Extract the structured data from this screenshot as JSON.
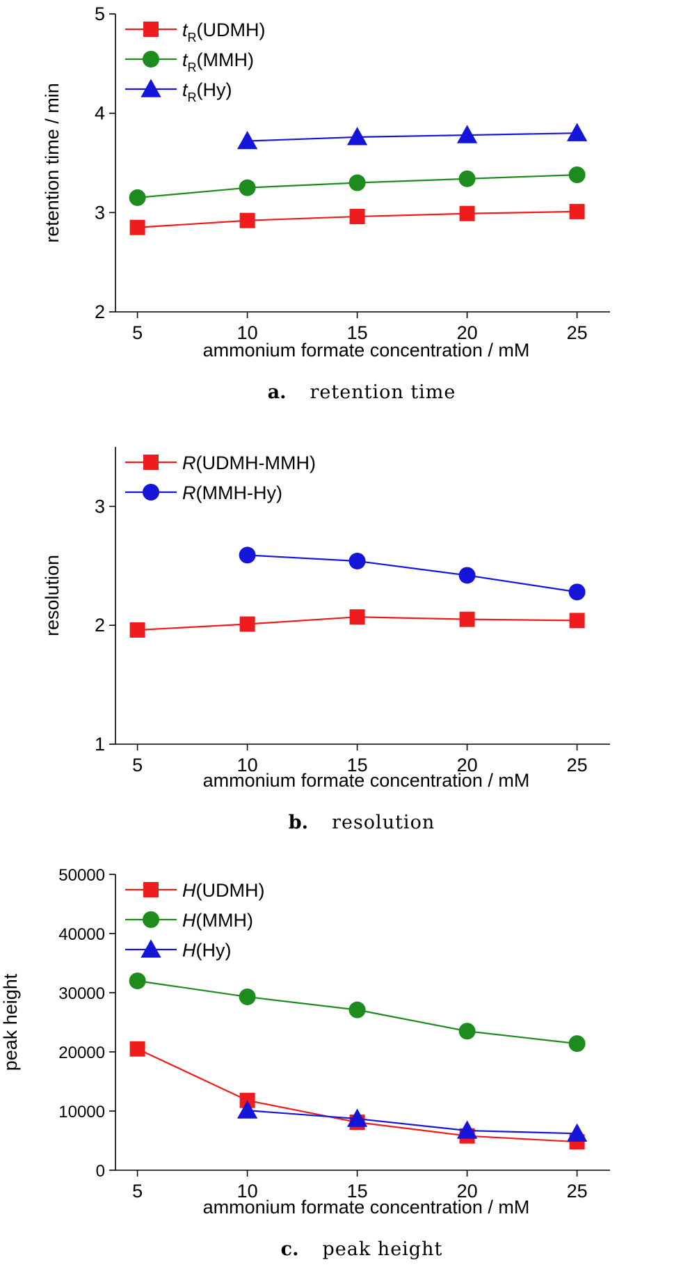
{
  "chart_data": [
    {
      "type": "line",
      "caption_letter": "a.",
      "caption_text": "retention time",
      "xlabel": "ammonium formate concentration / mM",
      "ylabel": "retention time / min",
      "xlim": [
        4,
        26.5
      ],
      "ylim": [
        2,
        5
      ],
      "xticks": [
        5,
        10,
        15,
        20,
        25
      ],
      "yticks": [
        2,
        3,
        4,
        5
      ],
      "legend_position": "top-left",
      "grid": false,
      "series": [
        {
          "name_main": "t",
          "name_sub": "R",
          "name_rest": "(UDMH)",
          "color": "#ee1c1c",
          "marker": "square",
          "x": [
            5,
            10,
            15,
            20,
            25
          ],
          "y": [
            2.85,
            2.92,
            2.96,
            2.99,
            3.01
          ]
        },
        {
          "name_main": "t",
          "name_sub": "R",
          "name_rest": "(MMH)",
          "color": "#1e8b1e",
          "marker": "circle",
          "x": [
            5,
            10,
            15,
            20,
            25
          ],
          "y": [
            3.15,
            3.25,
            3.3,
            3.34,
            3.38
          ]
        },
        {
          "name_main": "t",
          "name_sub": "R",
          "name_rest": "(Hy)",
          "color": "#1515d9",
          "marker": "triangle",
          "x": [
            10,
            15,
            20,
            25
          ],
          "y": [
            3.72,
            3.76,
            3.78,
            3.8
          ]
        }
      ]
    },
    {
      "type": "line",
      "caption_letter": "b.",
      "caption_text": "resolution",
      "xlabel": "ammonium formate concentration / mM",
      "ylabel": "resolution",
      "xlim": [
        4,
        26.5
      ],
      "ylim": [
        1,
        3.5
      ],
      "xticks": [
        5,
        10,
        15,
        20,
        25
      ],
      "yticks": [
        1,
        2,
        3
      ],
      "legend_position": "top-left",
      "grid": false,
      "series": [
        {
          "name_main": "R",
          "name_sub": "",
          "name_rest": "(UDMH-MMH)",
          "color": "#ee1c1c",
          "marker": "square",
          "x": [
            5,
            10,
            15,
            20,
            25
          ],
          "y": [
            1.96,
            2.01,
            2.07,
            2.05,
            2.04
          ]
        },
        {
          "name_main": "R",
          "name_sub": "",
          "name_rest": "(MMH-Hy)",
          "color": "#1515d9",
          "marker": "circle",
          "x": [
            10,
            15,
            20,
            25
          ],
          "y": [
            2.59,
            2.54,
            2.42,
            2.28
          ]
        }
      ]
    },
    {
      "type": "line",
      "caption_letter": "c.",
      "caption_text": "peak height",
      "xlabel": "ammonium formate concentration / mM",
      "ylabel": "peak height",
      "xlim": [
        4,
        26.5
      ],
      "ylim": [
        0,
        50000
      ],
      "xticks": [
        5,
        10,
        15,
        20,
        25
      ],
      "yticks": [
        0,
        10000,
        20000,
        30000,
        40000,
        50000
      ],
      "legend_position": "top-left",
      "grid": false,
      "series": [
        {
          "name_main": "H",
          "name_sub": "",
          "name_rest": "(UDMH)",
          "color": "#ee1c1c",
          "marker": "square",
          "x": [
            5,
            10,
            15,
            20,
            25
          ],
          "y": [
            20500,
            11800,
            8100,
            5800,
            4800
          ]
        },
        {
          "name_main": "H",
          "name_sub": "",
          "name_rest": "(MMH)",
          "color": "#1e8b1e",
          "marker": "circle",
          "x": [
            5,
            10,
            15,
            20,
            25
          ],
          "y": [
            32000,
            29300,
            27100,
            23500,
            21400
          ]
        },
        {
          "name_main": "H",
          "name_sub": "",
          "name_rest": "(Hy)",
          "color": "#1515d9",
          "marker": "triangle",
          "x": [
            10,
            15,
            20,
            25
          ],
          "y": [
            10100,
            8700,
            6700,
            6200
          ]
        }
      ]
    }
  ]
}
